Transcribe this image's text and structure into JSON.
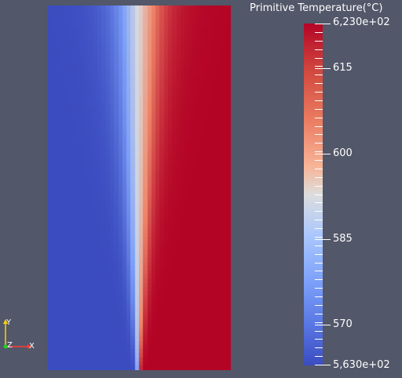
{
  "colorbar": {
    "title": "Primitive Temperature(°C)",
    "max_label": "6,230e+02",
    "min_label": "5,630e+02",
    "range": [
      563,
      623
    ],
    "tick_labels": [
      "615",
      "600",
      "585",
      "570"
    ],
    "tick_values": [
      615,
      600,
      585,
      570
    ],
    "colors": {
      "low": "#3b4cc0",
      "mid": "#dcdddd",
      "high": "#b40426"
    }
  },
  "axes_widget": {
    "y_label": "Y",
    "z_label": "Z",
    "x_label": "X",
    "colors": {
      "x": "#ff3b30",
      "y": "#ffd400",
      "z": "#22cc22"
    }
  },
  "view": {
    "background": "#525769"
  }
}
